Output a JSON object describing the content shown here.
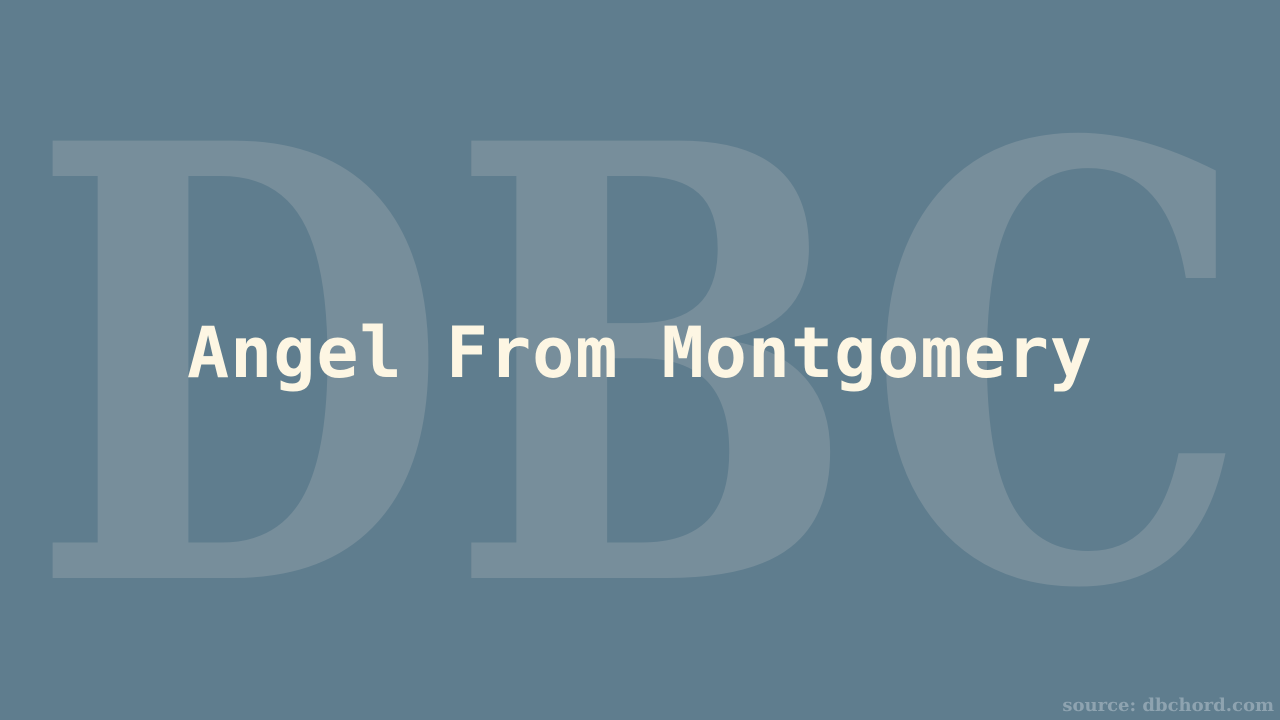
{
  "watermark": {
    "text": "DBC"
  },
  "title": "Angel From Montgomery",
  "source": "source: dbchord.com",
  "colors": {
    "background": "#5f7d8e",
    "watermark": "#778e9b",
    "title": "#fdf6e3",
    "source": "#8ea3b0"
  }
}
